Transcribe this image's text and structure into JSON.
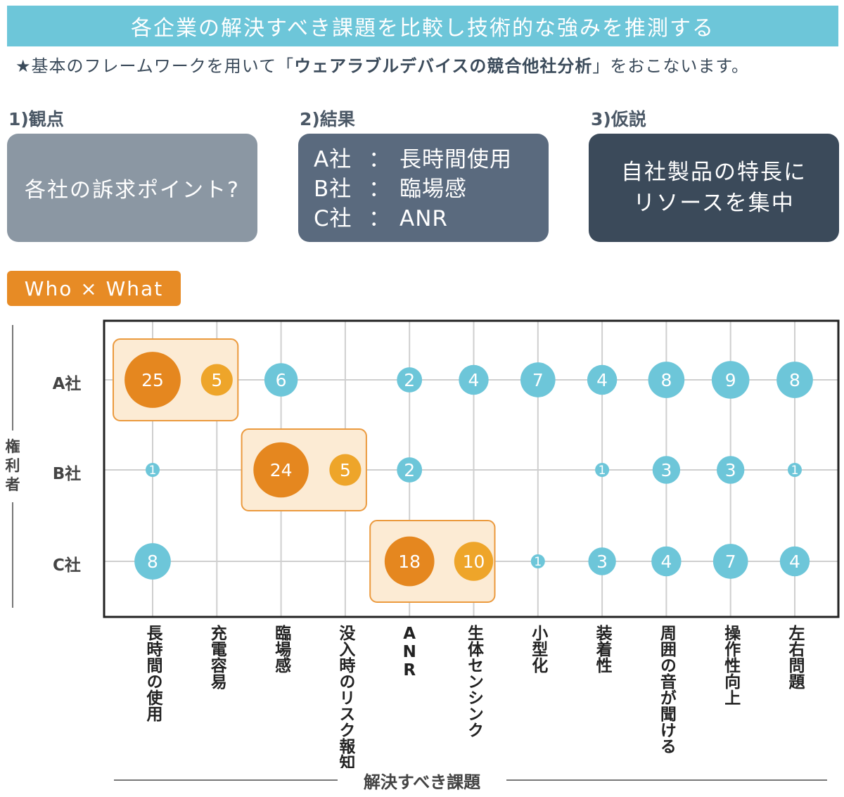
{
  "header": {
    "banner": "各企業の解決すべき課題を比較し技術的な強みを推測する",
    "subtitle_pre": "★基本のフレームワークを用いて「",
    "subtitle_bold": "ウェアラブルデバイスの競合他社分析",
    "subtitle_post": "」をおこないます。"
  },
  "steps": [
    {
      "label": "1)観点",
      "content": "各社の訴求ポイント?"
    },
    {
      "label": "2)結果",
      "lines": [
        {
          "company": "A社",
          "sep": "：",
          "value": "長時間使用"
        },
        {
          "company": "B社",
          "sep": "：",
          "value": "臨場感"
        },
        {
          "company": "C社",
          "sep": "：",
          "value": "ANR"
        }
      ]
    },
    {
      "label": "3)仮説",
      "line1": "自社製品の特長に",
      "line2": "リソースを集中"
    }
  ],
  "tag": "Who × What",
  "colors": {
    "banner": "#6dc6d9",
    "bubble_blue": "#6dc6d9",
    "bubble_orange_dark": "#e5871f",
    "bubble_orange_light": "#eea52a",
    "highlight_fill": "#fcebd4",
    "highlight_stroke": "#eb9a3e"
  },
  "chart_data": {
    "type": "bubble",
    "ylabel": "権利者",
    "xlabel": "解決すべき課題",
    "rows": [
      "A社",
      "B社",
      "C社"
    ],
    "categories": [
      "長時間の使用",
      "充電容易",
      "臨場感",
      "没入時のリスク報知",
      "ANR",
      "生体センシンク",
      "小型化",
      "装着性",
      "周囲の音が聞ける",
      "操作性向上",
      "左右問題"
    ],
    "series": [
      {
        "row": "A社",
        "values": [
          25,
          5,
          6,
          null,
          2,
          4,
          7,
          4,
          8,
          9,
          8
        ]
      },
      {
        "row": "B社",
        "values": [
          1,
          null,
          24,
          5,
          2,
          null,
          null,
          1,
          3,
          3,
          1
        ]
      },
      {
        "row": "C社",
        "values": [
          8,
          null,
          null,
          null,
          18,
          10,
          1,
          3,
          4,
          7,
          4
        ]
      }
    ],
    "highlights": [
      {
        "row": "A社",
        "categories": [
          "長時間の使用",
          "充電容易"
        ]
      },
      {
        "row": "B社",
        "categories": [
          "臨場感",
          "没入時のリスク報知"
        ]
      },
      {
        "row": "C社",
        "categories": [
          "ANR",
          "生体センシンク"
        ]
      }
    ]
  }
}
